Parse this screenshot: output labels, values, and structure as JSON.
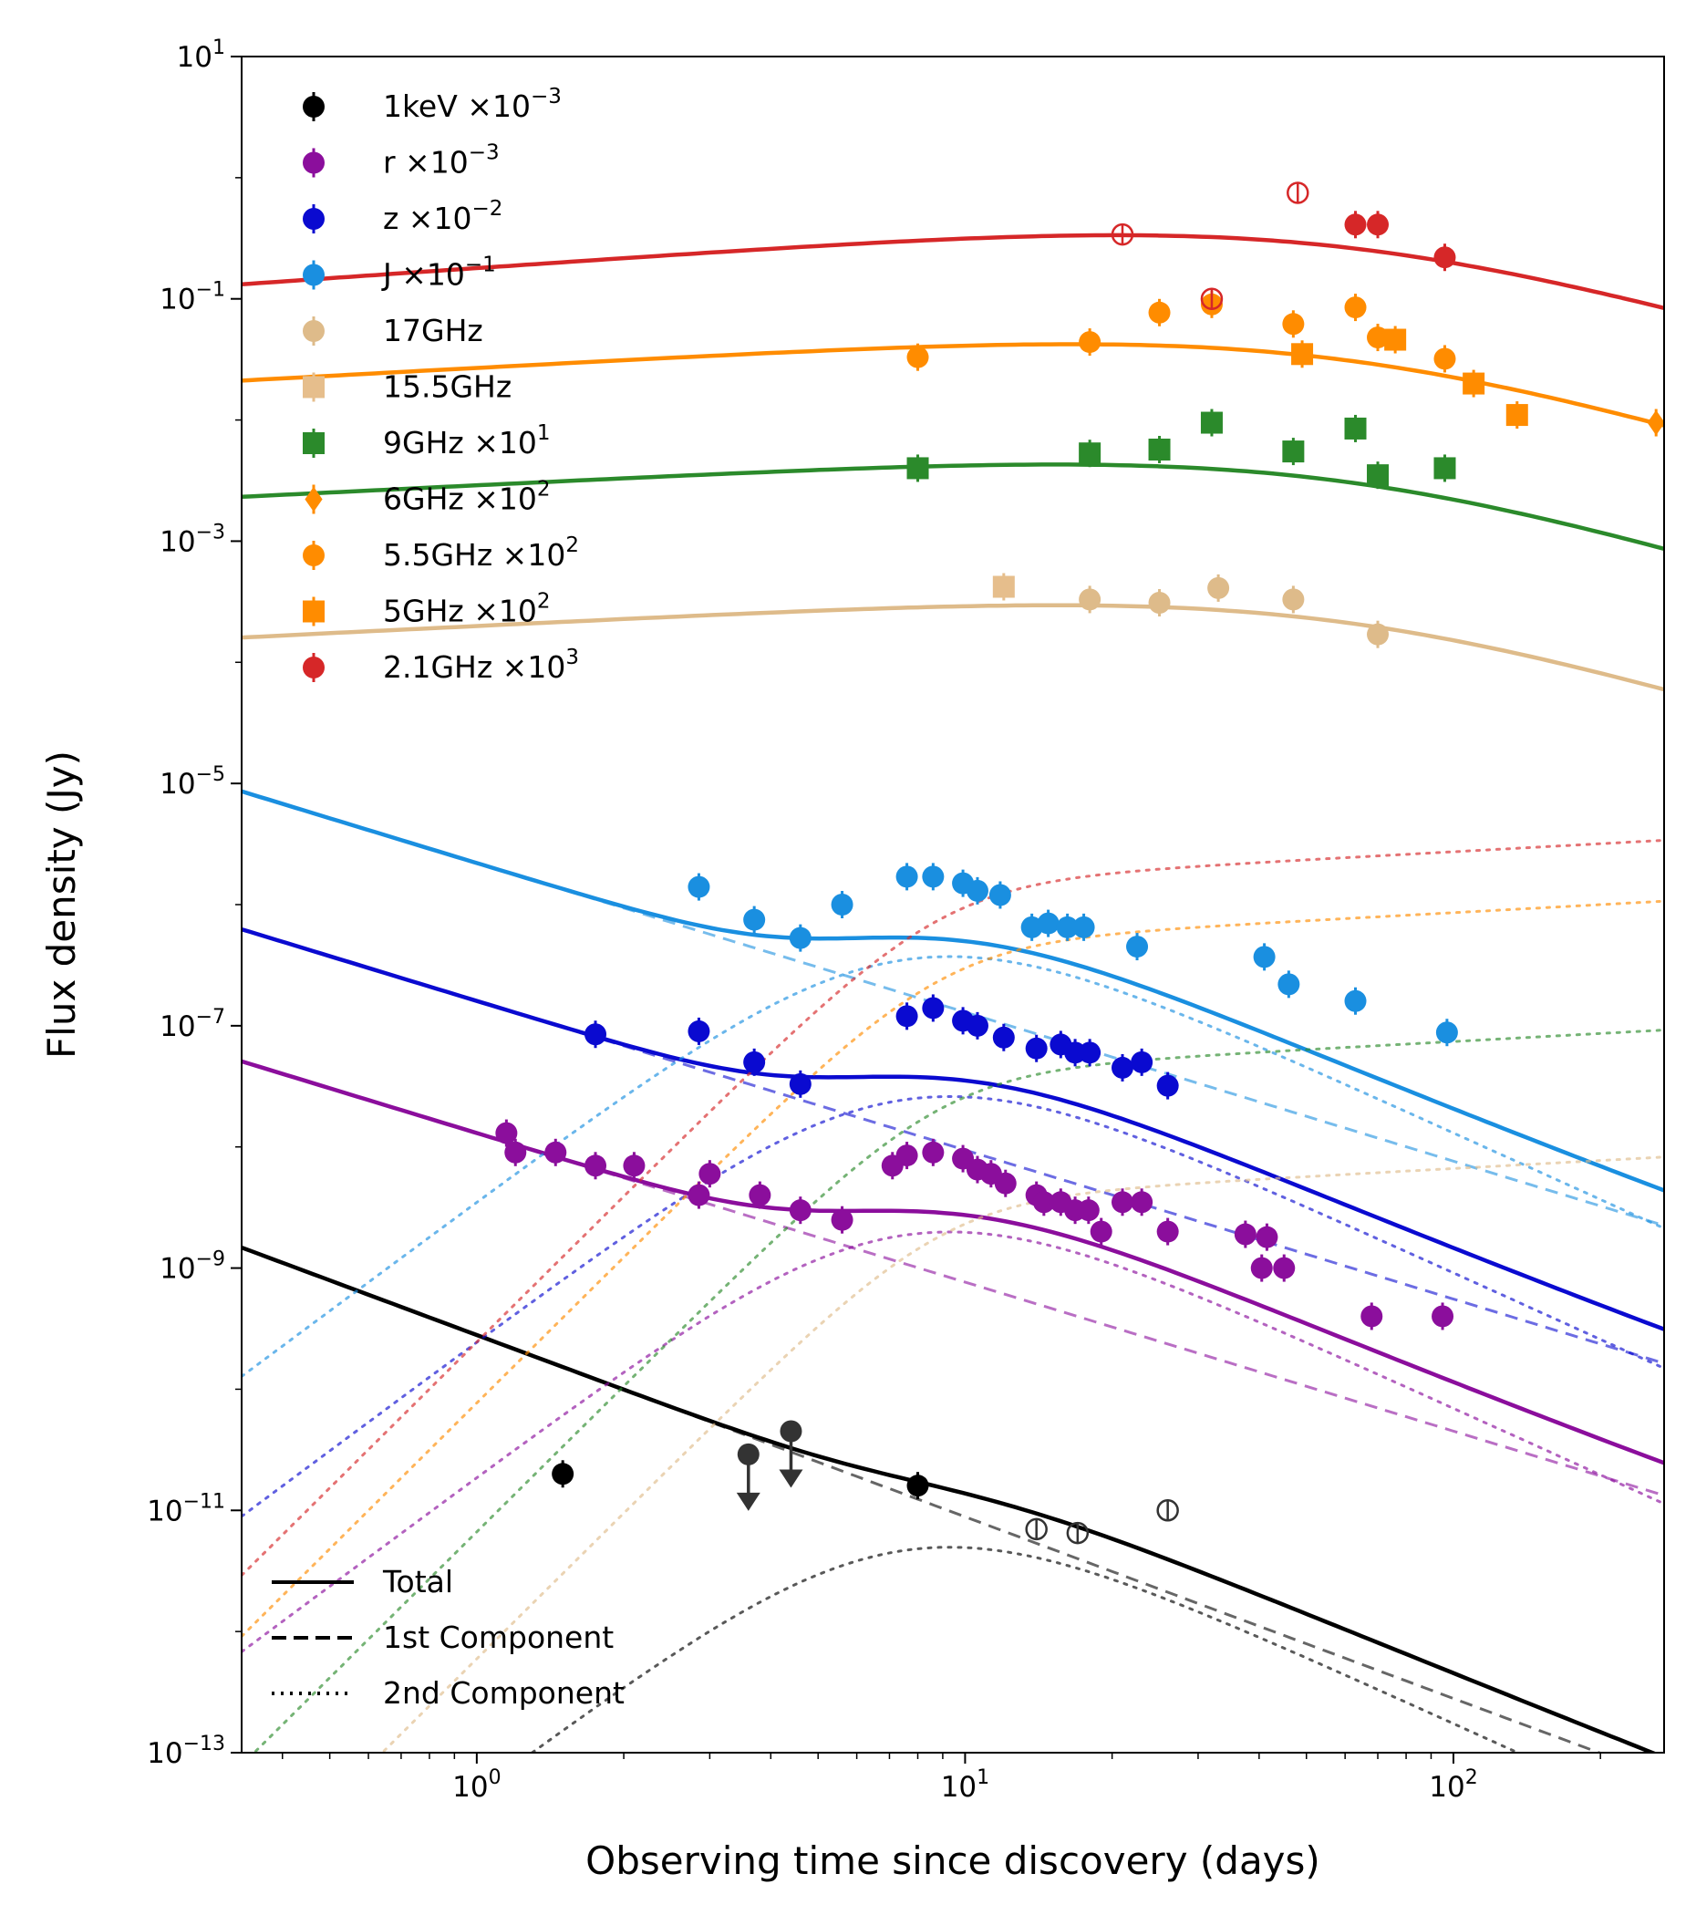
{
  "chart_data": {
    "type": "scatter",
    "xlabel": "Observing time since discovery (days)",
    "ylabel": "Flux density (Jy)",
    "xscale": "log",
    "yscale": "log",
    "xlim": [
      0.33,
      270
    ],
    "ylim": [
      1e-13,
      10
    ],
    "x_ticks": [
      {
        "value": 1,
        "base": "10",
        "exp": "0"
      },
      {
        "value": 10,
        "base": "10",
        "exp": "1"
      },
      {
        "value": 100,
        "base": "10",
        "exp": "2"
      }
    ],
    "y_ticks": [
      {
        "value": 10,
        "base": "10",
        "exp": "1"
      },
      {
        "value": 0.1,
        "base": "10",
        "exp": "−1"
      },
      {
        "value": 0.001,
        "base": "10",
        "exp": "−3"
      },
      {
        "value": 1e-05,
        "base": "10",
        "exp": "−5"
      },
      {
        "value": 1e-07,
        "base": "10",
        "exp": "−7"
      },
      {
        "value": 1e-09,
        "base": "10",
        "exp": "−9"
      },
      {
        "value": 1e-11,
        "base": "10",
        "exp": "−11"
      },
      {
        "value": 1e-13,
        "base": "10",
        "exp": "−13"
      }
    ],
    "legend": {
      "location": "top-left",
      "entries": [
        {
          "label": "1keV ×10",
          "exp": "−3",
          "color": "#000000",
          "marker": "circle"
        },
        {
          "label": "r ×10",
          "exp": "−3",
          "color": "#8b0e9c",
          "marker": "circle"
        },
        {
          "label": "z ×10",
          "exp": "−2",
          "color": "#0a0ad0",
          "marker": "circle"
        },
        {
          "label": "J ×10",
          "exp": "−1",
          "color": "#1a8fe0",
          "marker": "circle"
        },
        {
          "label": "17GHz",
          "exp": "",
          "color": "#debb8a",
          "marker": "circle"
        },
        {
          "label": "15.5GHz",
          "exp": "",
          "color": "#e6be8c",
          "marker": "square"
        },
        {
          "label": "9GHz ×10",
          "exp": "1",
          "color": "#2b8a2b",
          "marker": "square"
        },
        {
          "label": "6GHz ×10",
          "exp": "2",
          "color": "#ff8c00",
          "marker": "diamond"
        },
        {
          "label": "5.5GHz ×10",
          "exp": "2",
          "color": "#ff8c00",
          "marker": "circle"
        },
        {
          "label": "5GHz ×10",
          "exp": "2",
          "color": "#ff8c00",
          "marker": "square"
        },
        {
          "label": "2.1GHz ×10",
          "exp": "3",
          "color": "#d62728",
          "marker": "circle"
        }
      ]
    },
    "style_legend": {
      "location": "bottom-left",
      "entries": [
        {
          "label": "Total",
          "style": "solid"
        },
        {
          "label": "1st Component",
          "style": "dashed"
        },
        {
          "label": "2nd Component",
          "style": "dotted"
        }
      ]
    },
    "series": [
      {
        "name": "1keV ×10^−3",
        "color": "#000000",
        "marker": "circle",
        "points": [
          {
            "x": 1.5,
            "y": 2e-11
          },
          {
            "x": 8,
            "y": 1.6e-11
          }
        ],
        "open_points": [
          {
            "x": 14,
            "y": 7e-12
          },
          {
            "x": 17,
            "y": 6.5e-12
          },
          {
            "x": 26,
            "y": 1e-11
          }
        ],
        "upper_limits": [
          {
            "x": 3.6,
            "y": 2.9e-11
          },
          {
            "x": 4.4,
            "y": 4.5e-11
          }
        ],
        "model": {
          "early_norm": 2.8e-10,
          "early_slope": -1.5,
          "late_norm": 2e-11,
          "late_t0": 7.5
        }
      },
      {
        "name": "r ×10^−3",
        "color": "#8b0e9c",
        "marker": "circle",
        "points": [
          {
            "x": 1.15,
            "y": 1.3e-08
          },
          {
            "x": 1.2,
            "y": 9e-09
          },
          {
            "x": 1.45,
            "y": 9e-09
          },
          {
            "x": 1.75,
            "y": 7e-09
          },
          {
            "x": 2.1,
            "y": 7e-09
          },
          {
            "x": 2.85,
            "y": 4e-09
          },
          {
            "x": 3,
            "y": 6e-09
          },
          {
            "x": 3.8,
            "y": 4e-09
          },
          {
            "x": 4.6,
            "y": 3e-09
          },
          {
            "x": 5.6,
            "y": 2.5e-09
          },
          {
            "x": 7.1,
            "y": 7e-09
          },
          {
            "x": 7.6,
            "y": 8.5e-09
          },
          {
            "x": 8.6,
            "y": 9e-09
          },
          {
            "x": 9.9,
            "y": 8e-09
          },
          {
            "x": 10.6,
            "y": 6.5e-09
          },
          {
            "x": 11.3,
            "y": 6e-09
          },
          {
            "x": 12.1,
            "y": 5e-09
          },
          {
            "x": 14,
            "y": 4e-09
          },
          {
            "x": 14.5,
            "y": 3.5e-09
          },
          {
            "x": 15.7,
            "y": 3.5e-09
          },
          {
            "x": 16.8,
            "y": 3e-09
          },
          {
            "x": 17.9,
            "y": 3e-09
          },
          {
            "x": 19,
            "y": 2e-09
          },
          {
            "x": 21,
            "y": 3.5e-09
          },
          {
            "x": 23,
            "y": 3.5e-09
          },
          {
            "x": 26,
            "y": 2e-09
          },
          {
            "x": 37.5,
            "y": 1.9e-09
          },
          {
            "x": 40.5,
            "y": 1e-09
          },
          {
            "x": 41.5,
            "y": 1.8e-09
          },
          {
            "x": 45,
            "y": 1e-09
          },
          {
            "x": 68,
            "y": 4e-10
          },
          {
            "x": 95,
            "y": 4e-10
          }
        ],
        "model": {
          "early_norm": 1.3e-08,
          "early_slope": -1.23,
          "late_norm": 8e-09,
          "late_t0": 7.5
        }
      },
      {
        "name": "z ×10^−2",
        "color": "#0a0ad0",
        "marker": "circle",
        "points": [
          {
            "x": 1.75,
            "y": 8.5e-08
          },
          {
            "x": 2.85,
            "y": 9e-08
          },
          {
            "x": 3.7,
            "y": 5e-08
          },
          {
            "x": 4.6,
            "y": 3.3e-08
          },
          {
            "x": 7.6,
            "y": 1.2e-07
          },
          {
            "x": 8.6,
            "y": 1.4e-07
          },
          {
            "x": 9.9,
            "y": 1.1e-07
          },
          {
            "x": 10.6,
            "y": 1e-07
          },
          {
            "x": 12,
            "y": 8e-08
          },
          {
            "x": 14,
            "y": 6.5e-08
          },
          {
            "x": 15.7,
            "y": 7e-08
          },
          {
            "x": 16.8,
            "y": 6e-08
          },
          {
            "x": 18,
            "y": 6e-08
          },
          {
            "x": 21,
            "y": 4.5e-08
          },
          {
            "x": 23,
            "y": 5e-08
          },
          {
            "x": 26,
            "y": 3.2e-08
          }
        ],
        "model": {
          "early_norm": 1.6e-07,
          "early_slope": -1.23,
          "late_norm": 1.05e-07,
          "late_t0": 7.5
        }
      },
      {
        "name": "J ×10^−1",
        "color": "#1a8fe0",
        "marker": "circle",
        "points": [
          {
            "x": 2.85,
            "y": 1.4e-06
          },
          {
            "x": 3.7,
            "y": 7.5e-07
          },
          {
            "x": 4.6,
            "y": 5.3e-07
          },
          {
            "x": 5.6,
            "y": 1e-06
          },
          {
            "x": 7.6,
            "y": 1.7e-06
          },
          {
            "x": 8.6,
            "y": 1.7e-06
          },
          {
            "x": 9.9,
            "y": 1.5e-06
          },
          {
            "x": 10.6,
            "y": 1.3e-06
          },
          {
            "x": 11.8,
            "y": 1.2e-06
          },
          {
            "x": 13.7,
            "y": 6.5e-07
          },
          {
            "x": 14.8,
            "y": 7e-07
          },
          {
            "x": 16.2,
            "y": 6.5e-07
          },
          {
            "x": 17.5,
            "y": 6.5e-07
          },
          {
            "x": 22.5,
            "y": 4.5e-07
          },
          {
            "x": 41,
            "y": 3.7e-07
          },
          {
            "x": 46,
            "y": 2.2e-07
          },
          {
            "x": 63,
            "y": 1.6e-07
          },
          {
            "x": 97,
            "y": 8.8e-08
          }
        ],
        "model": {
          "early_norm": 2.2e-06,
          "early_slope": -1.23,
          "late_norm": 1.5e-06,
          "late_t0": 7.5
        }
      },
      {
        "name": "17GHz",
        "color": "#debb8a",
        "marker": "circle",
        "points": [
          {
            "x": 18,
            "y": 0.00033
          },
          {
            "x": 25,
            "y": 0.00031
          },
          {
            "x": 33,
            "y": 0.00041
          },
          {
            "x": 47,
            "y": 0.00033
          },
          {
            "x": 70,
            "y": 0.00017
          }
        ],
        "model": {
          "early_norm": 0.0002,
          "early_slope": 0.2,
          "late_norm": 0.00017,
          "late_t0": 130
        }
      },
      {
        "name": "15.5GHz",
        "color": "#e6be8c",
        "marker": "square",
        "points": [
          {
            "x": 12,
            "y": 0.00042
          }
        ]
      },
      {
        "name": "9GHz ×10^1",
        "color": "#2b8a2b",
        "marker": "square",
        "points": [
          {
            "x": 8,
            "y": 0.004
          },
          {
            "x": 18,
            "y": 0.0053
          },
          {
            "x": 25,
            "y": 0.0057
          },
          {
            "x": 32,
            "y": 0.0095
          },
          {
            "x": 47,
            "y": 0.0055
          },
          {
            "x": 63,
            "y": 0.0085
          },
          {
            "x": 70,
            "y": 0.0035
          },
          {
            "x": 96,
            "y": 0.004
          }
        ],
        "model": {
          "early_norm": 0.0029,
          "early_slope": 0.2,
          "late_norm": 0.0019,
          "late_t0": 130
        }
      },
      {
        "name": "6GHz ×10^2",
        "color": "#ff8c00",
        "marker": "diamond",
        "points": [
          {
            "x": 260,
            "y": 0.0095
          }
        ]
      },
      {
        "name": "5.5GHz ×10^2",
        "color": "#ff8c00",
        "marker": "circle",
        "points": [
          {
            "x": 8,
            "y": 0.033
          },
          {
            "x": 18,
            "y": 0.044
          },
          {
            "x": 25,
            "y": 0.077
          },
          {
            "x": 32,
            "y": 0.09
          },
          {
            "x": 47,
            "y": 0.062
          },
          {
            "x": 63,
            "y": 0.085
          },
          {
            "x": 70,
            "y": 0.048
          },
          {
            "x": 96,
            "y": 0.032
          }
        ],
        "model": {
          "early_norm": 0.027,
          "early_slope": 0.22,
          "late_norm": 0.022,
          "late_t0": 130
        }
      },
      {
        "name": "5GHz ×10^2",
        "color": "#ff8c00",
        "marker": "square",
        "points": [
          {
            "x": 49,
            "y": 0.035
          },
          {
            "x": 76,
            "y": 0.046
          },
          {
            "x": 110,
            "y": 0.02
          },
          {
            "x": 135,
            "y": 0.011
          }
        ]
      },
      {
        "name": "2.1GHz ×10^3",
        "color": "#d62728",
        "marker": "circle",
        "points": [
          {
            "x": 63,
            "y": 0.41
          },
          {
            "x": 70,
            "y": 0.41
          },
          {
            "x": 96,
            "y": 0.22
          }
        ],
        "open_points": [
          {
            "x": 21,
            "y": 0.34
          },
          {
            "x": 32,
            "y": 0.1
          },
          {
            "x": 48,
            "y": 0.75
          }
        ],
        "model": {
          "early_norm": 0.18,
          "early_slope": 0.28,
          "late_norm": 0.07,
          "late_t0": 130
        }
      }
    ]
  }
}
